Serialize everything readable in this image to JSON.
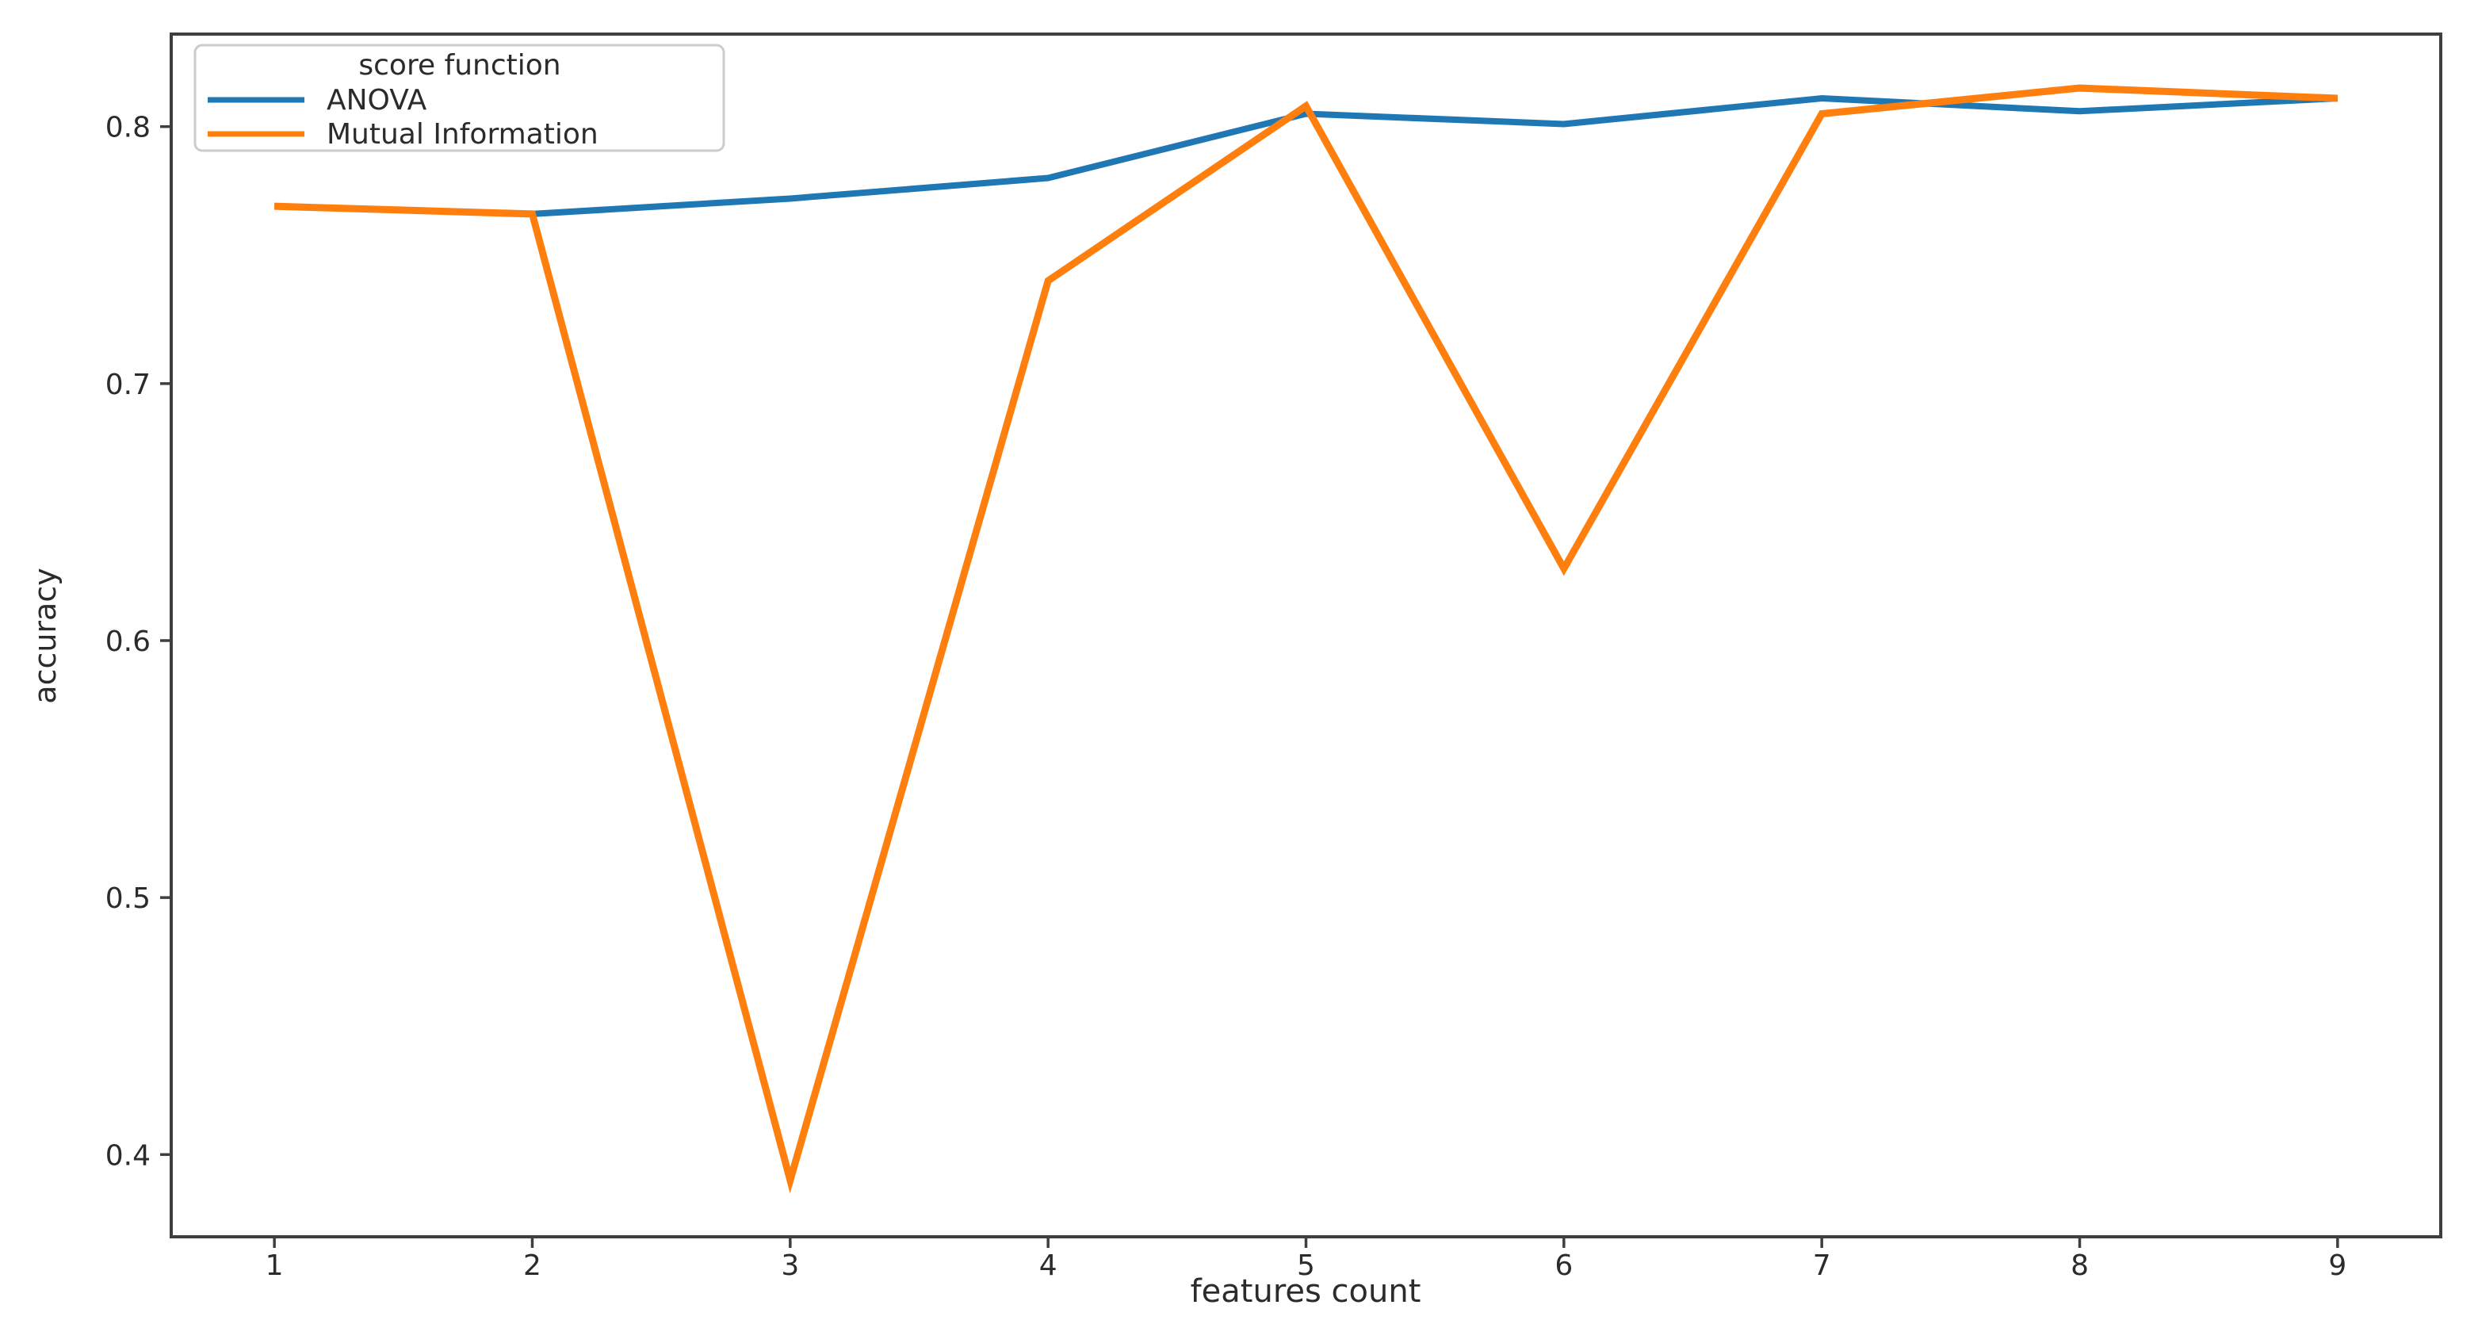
{
  "chart_data": {
    "type": "line",
    "x": [
      1,
      2,
      3,
      4,
      5,
      6,
      7,
      8,
      9
    ],
    "series": [
      {
        "name": "ANOVA",
        "color": "#1f77b4",
        "values": [
          0.769,
          0.766,
          0.772,
          0.78,
          0.805,
          0.801,
          0.811,
          0.806,
          0.811
        ]
      },
      {
        "name": "Mutual Information",
        "color": "#ff7f0e",
        "values": [
          0.769,
          0.766,
          0.39,
          0.74,
          0.808,
          0.628,
          0.805,
          0.815,
          0.811
        ]
      }
    ],
    "title": "",
    "xlabel": "features count",
    "ylabel": "accuracy",
    "legend_title": "score function",
    "legend_position": "upper left",
    "xlim": [
      0.6,
      9.4
    ],
    "ylim": [
      0.368,
      0.836
    ],
    "x_tick_labels": [
      "1",
      "2",
      "3",
      "4",
      "5",
      "6",
      "7",
      "8",
      "9"
    ],
    "y_tick_labels": [
      "0.4",
      "0.5",
      "0.6",
      "0.7",
      "0.8"
    ],
    "y_tick_values": [
      0.4,
      0.5,
      0.6,
      0.7,
      0.8
    ],
    "grid": false
  },
  "colors": {
    "axis": "#3f3f3f",
    "tick_text": "#2b2b2b",
    "legend_border": "#cccccc",
    "background": "#ffffff"
  }
}
